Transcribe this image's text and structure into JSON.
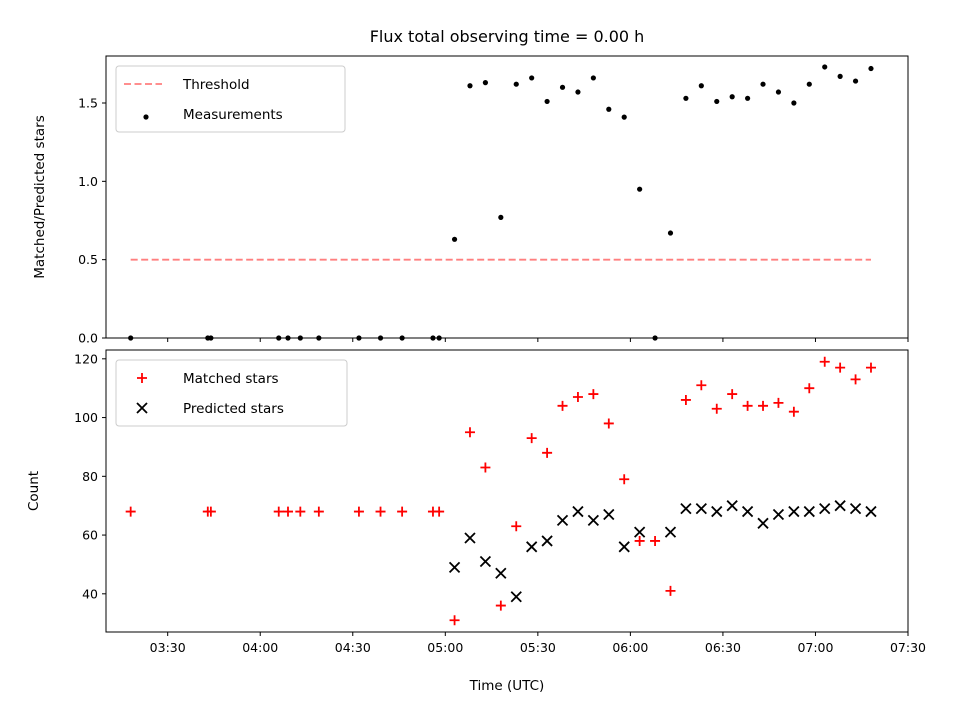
{
  "figure": {
    "title": "Flux total observing time = 0.00 h",
    "xlabel": "Time (UTC)"
  },
  "chart_data": [
    {
      "type": "scatter",
      "name": "ratio",
      "ylabel": "Matched/Predicted stars",
      "ylim": [
        0,
        1.8
      ],
      "yticks": [
        "0.0",
        "0.5",
        "1.0",
        "1.5"
      ],
      "xlim": [
        "03:10",
        "07:30"
      ],
      "legend": "top-left",
      "series": [
        {
          "name": "Threshold",
          "style": "dashed-line",
          "color": "#ff7f7f",
          "points": [
            {
              "x": "03:18",
              "y": 0.5
            },
            {
              "x": "07:18",
              "y": 0.5
            }
          ]
        },
        {
          "name": "Measurements",
          "style": "dot",
          "color": "#000000",
          "points": [
            {
              "x": "03:18",
              "y": 0.0
            },
            {
              "x": "03:43",
              "y": 0.0
            },
            {
              "x": "03:44",
              "y": 0.0
            },
            {
              "x": "04:06",
              "y": 0.0
            },
            {
              "x": "04:09",
              "y": 0.0
            },
            {
              "x": "04:13",
              "y": 0.0
            },
            {
              "x": "04:19",
              "y": 0.0
            },
            {
              "x": "04:32",
              "y": 0.0
            },
            {
              "x": "04:39",
              "y": 0.0
            },
            {
              "x": "04:46",
              "y": 0.0
            },
            {
              "x": "04:56",
              "y": 0.0
            },
            {
              "x": "04:58",
              "y": 0.0
            },
            {
              "x": "05:03",
              "y": 0.63
            },
            {
              "x": "05:08",
              "y": 1.61
            },
            {
              "x": "05:13",
              "y": 1.63
            },
            {
              "x": "05:18",
              "y": 0.77
            },
            {
              "x": "05:23",
              "y": 1.62
            },
            {
              "x": "05:28",
              "y": 1.66
            },
            {
              "x": "05:33",
              "y": 1.51
            },
            {
              "x": "05:38",
              "y": 1.6
            },
            {
              "x": "05:43",
              "y": 1.57
            },
            {
              "x": "05:48",
              "y": 1.66
            },
            {
              "x": "05:53",
              "y": 1.46
            },
            {
              "x": "05:58",
              "y": 1.41
            },
            {
              "x": "06:03",
              "y": 0.95
            },
            {
              "x": "06:08",
              "y": 0.0
            },
            {
              "x": "06:13",
              "y": 0.67
            },
            {
              "x": "06:18",
              "y": 1.53
            },
            {
              "x": "06:23",
              "y": 1.61
            },
            {
              "x": "06:28",
              "y": 1.51
            },
            {
              "x": "06:33",
              "y": 1.54
            },
            {
              "x": "06:38",
              "y": 1.53
            },
            {
              "x": "06:43",
              "y": 1.62
            },
            {
              "x": "06:48",
              "y": 1.57
            },
            {
              "x": "06:53",
              "y": 1.5
            },
            {
              "x": "06:58",
              "y": 1.62
            },
            {
              "x": "07:03",
              "y": 1.73
            },
            {
              "x": "07:08",
              "y": 1.67
            },
            {
              "x": "07:13",
              "y": 1.64
            },
            {
              "x": "07:18",
              "y": 1.72
            }
          ]
        }
      ]
    },
    {
      "type": "scatter",
      "name": "counts",
      "ylabel": "Count",
      "ylim": [
        27,
        123
      ],
      "yticks": [
        "40",
        "60",
        "80",
        "100",
        "120"
      ],
      "xlim": [
        "03:10",
        "07:30"
      ],
      "xticks": [
        "03:30",
        "04:00",
        "04:30",
        "05:00",
        "05:30",
        "06:00",
        "06:30",
        "07:00",
        "07:30"
      ],
      "legend": "top-left",
      "series": [
        {
          "name": "Matched stars",
          "style": "plus",
          "color": "#ff0000",
          "points": [
            {
              "x": "03:18",
              "y": 68
            },
            {
              "x": "03:43",
              "y": 68
            },
            {
              "x": "03:44",
              "y": 68
            },
            {
              "x": "04:06",
              "y": 68
            },
            {
              "x": "04:09",
              "y": 68
            },
            {
              "x": "04:13",
              "y": 68
            },
            {
              "x": "04:19",
              "y": 68
            },
            {
              "x": "04:32",
              "y": 68
            },
            {
              "x": "04:39",
              "y": 68
            },
            {
              "x": "04:46",
              "y": 68
            },
            {
              "x": "04:56",
              "y": 68
            },
            {
              "x": "04:58",
              "y": 68
            },
            {
              "x": "05:03",
              "y": 31
            },
            {
              "x": "05:08",
              "y": 95
            },
            {
              "x": "05:13",
              "y": 83
            },
            {
              "x": "05:18",
              "y": 36
            },
            {
              "x": "05:23",
              "y": 63
            },
            {
              "x": "05:28",
              "y": 93
            },
            {
              "x": "05:33",
              "y": 88
            },
            {
              "x": "05:38",
              "y": 104
            },
            {
              "x": "05:43",
              "y": 107
            },
            {
              "x": "05:48",
              "y": 108
            },
            {
              "x": "05:53",
              "y": 98
            },
            {
              "x": "05:58",
              "y": 79
            },
            {
              "x": "06:03",
              "y": 58
            },
            {
              "x": "06:08",
              "y": 58
            },
            {
              "x": "06:13",
              "y": 41
            },
            {
              "x": "06:18",
              "y": 106
            },
            {
              "x": "06:23",
              "y": 111
            },
            {
              "x": "06:28",
              "y": 103
            },
            {
              "x": "06:33",
              "y": 108
            },
            {
              "x": "06:38",
              "y": 104
            },
            {
              "x": "06:43",
              "y": 104
            },
            {
              "x": "06:48",
              "y": 105
            },
            {
              "x": "06:53",
              "y": 102
            },
            {
              "x": "06:58",
              "y": 110
            },
            {
              "x": "07:03",
              "y": 119
            },
            {
              "x": "07:08",
              "y": 117
            },
            {
              "x": "07:13",
              "y": 113
            },
            {
              "x": "07:18",
              "y": 117
            }
          ]
        },
        {
          "name": "Predicted stars",
          "style": "x",
          "color": "#000000",
          "points": [
            {
              "x": "05:03",
              "y": 49
            },
            {
              "x": "05:08",
              "y": 59
            },
            {
              "x": "05:13",
              "y": 51
            },
            {
              "x": "05:18",
              "y": 47
            },
            {
              "x": "05:23",
              "y": 39
            },
            {
              "x": "05:28",
              "y": 56
            },
            {
              "x": "05:33",
              "y": 58
            },
            {
              "x": "05:38",
              "y": 65
            },
            {
              "x": "05:43",
              "y": 68
            },
            {
              "x": "05:48",
              "y": 65
            },
            {
              "x": "05:53",
              "y": 67
            },
            {
              "x": "05:58",
              "y": 56
            },
            {
              "x": "06:03",
              "y": 61
            },
            {
              "x": "06:13",
              "y": 61
            },
            {
              "x": "06:18",
              "y": 69
            },
            {
              "x": "06:23",
              "y": 69
            },
            {
              "x": "06:28",
              "y": 68
            },
            {
              "x": "06:33",
              "y": 70
            },
            {
              "x": "06:38",
              "y": 68
            },
            {
              "x": "06:43",
              "y": 64
            },
            {
              "x": "06:48",
              "y": 67
            },
            {
              "x": "06:53",
              "y": 68
            },
            {
              "x": "06:58",
              "y": 68
            },
            {
              "x": "07:03",
              "y": 69
            },
            {
              "x": "07:08",
              "y": 70
            },
            {
              "x": "07:13",
              "y": 69
            },
            {
              "x": "07:18",
              "y": 68
            }
          ]
        }
      ]
    }
  ]
}
